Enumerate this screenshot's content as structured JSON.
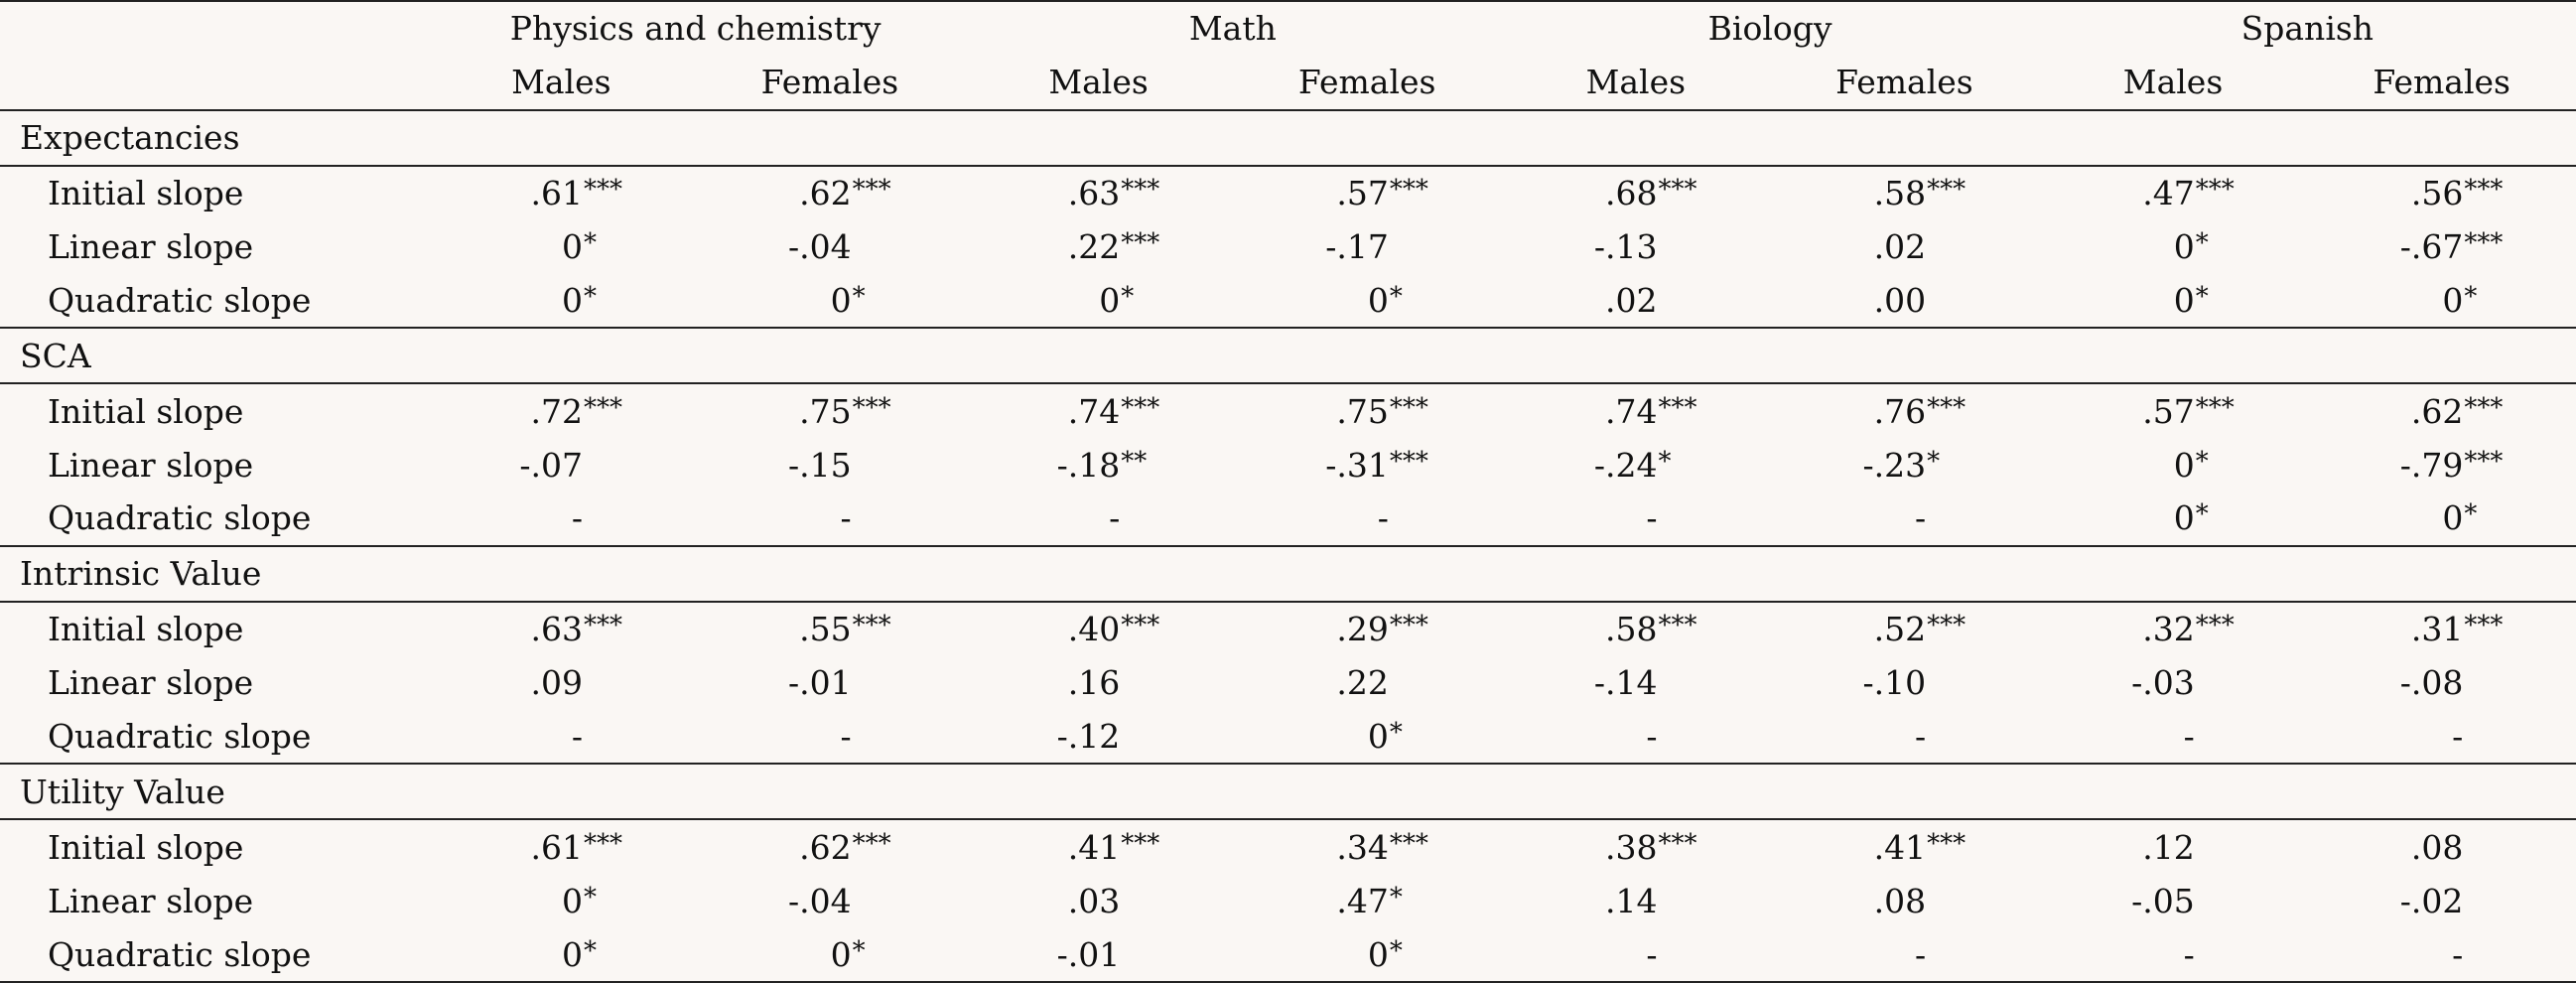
{
  "subjects": [
    "Physics and chemistry",
    "Math",
    "Biology",
    "Spanish"
  ],
  "sexes": [
    "Males",
    "Females"
  ],
  "groups": [
    {
      "label": "Expectancies",
      "rows": [
        {
          "label": "Initial slope",
          "cells": [
            {
              "v": ".61",
              "s": "***"
            },
            {
              "v": ".62",
              "s": "***"
            },
            {
              "v": ".63",
              "s": "***"
            },
            {
              "v": ".57",
              "s": "***"
            },
            {
              "v": ".68",
              "s": "***"
            },
            {
              "v": ".58",
              "s": "***"
            },
            {
              "v": ".47",
              "s": "***"
            },
            {
              "v": ".56",
              "s": "***"
            }
          ]
        },
        {
          "label": "Linear slope",
          "cells": [
            {
              "v": "0",
              "s": "*"
            },
            {
              "v": "-.04",
              "s": ""
            },
            {
              "v": ".22",
              "s": "***"
            },
            {
              "v": "-.17",
              "s": ""
            },
            {
              "v": "-.13",
              "s": ""
            },
            {
              "v": ".02",
              "s": ""
            },
            {
              "v": "0",
              "s": "*"
            },
            {
              "v": "-.67",
              "s": "***"
            }
          ]
        },
        {
          "label": "Quadratic slope",
          "cells": [
            {
              "v": "0",
              "s": "*"
            },
            {
              "v": "0",
              "s": "*"
            },
            {
              "v": "0",
              "s": "*"
            },
            {
              "v": "0",
              "s": "*"
            },
            {
              "v": ".02",
              "s": ""
            },
            {
              "v": ".00",
              "s": ""
            },
            {
              "v": "0",
              "s": "*"
            },
            {
              "v": "0",
              "s": "*"
            }
          ]
        }
      ]
    },
    {
      "label": "SCA",
      "rows": [
        {
          "label": "Initial slope",
          "cells": [
            {
              "v": ".72",
              "s": "***"
            },
            {
              "v": ".75",
              "s": "***"
            },
            {
              "v": ".74",
              "s": "***"
            },
            {
              "v": ".75",
              "s": "***"
            },
            {
              "v": ".74",
              "s": "***"
            },
            {
              "v": ".76",
              "s": "***"
            },
            {
              "v": ".57",
              "s": "***"
            },
            {
              "v": ".62",
              "s": "***"
            }
          ]
        },
        {
          "label": "Linear slope",
          "cells": [
            {
              "v": "-.07",
              "s": ""
            },
            {
              "v": "-.15",
              "s": ""
            },
            {
              "v": "-.18",
              "s": "**"
            },
            {
              "v": "-.31",
              "s": "***"
            },
            {
              "v": "-.24",
              "s": "*"
            },
            {
              "v": "-.23",
              "s": "*"
            },
            {
              "v": "0",
              "s": "*"
            },
            {
              "v": "-.79",
              "s": "***"
            }
          ]
        },
        {
          "label": "Quadratic slope",
          "cells": [
            {
              "v": "-",
              "s": ""
            },
            {
              "v": "-",
              "s": ""
            },
            {
              "v": "-",
              "s": ""
            },
            {
              "v": "-",
              "s": ""
            },
            {
              "v": "-",
              "s": ""
            },
            {
              "v": "-",
              "s": ""
            },
            {
              "v": "0",
              "s": "*"
            },
            {
              "v": "0",
              "s": "*"
            }
          ]
        }
      ]
    },
    {
      "label": "Intrinsic Value",
      "rows": [
        {
          "label": "Initial slope",
          "cells": [
            {
              "v": ".63",
              "s": "***"
            },
            {
              "v": ".55",
              "s": "***"
            },
            {
              "v": ".40",
              "s": "***"
            },
            {
              "v": ".29",
              "s": "***"
            },
            {
              "v": ".58",
              "s": "***"
            },
            {
              "v": ".52",
              "s": "***"
            },
            {
              "v": ".32",
              "s": "***"
            },
            {
              "v": ".31",
              "s": "***"
            }
          ]
        },
        {
          "label": "Linear slope",
          "cells": [
            {
              "v": ".09",
              "s": ""
            },
            {
              "v": "-.01",
              "s": ""
            },
            {
              "v": ".16",
              "s": ""
            },
            {
              "v": ".22",
              "s": ""
            },
            {
              "v": "-.14",
              "s": ""
            },
            {
              "v": "-.10",
              "s": ""
            },
            {
              "v": "-.03",
              "s": ""
            },
            {
              "v": "-.08",
              "s": ""
            }
          ]
        },
        {
          "label": "Quadratic slope",
          "cells": [
            {
              "v": "-",
              "s": ""
            },
            {
              "v": "-",
              "s": ""
            },
            {
              "v": "-.12",
              "s": ""
            },
            {
              "v": "0",
              "s": "*"
            },
            {
              "v": "-",
              "s": ""
            },
            {
              "v": "-",
              "s": ""
            },
            {
              "v": "-",
              "s": ""
            },
            {
              "v": "-",
              "s": ""
            }
          ]
        }
      ]
    },
    {
      "label": "Utility Value",
      "rows": [
        {
          "label": "Initial slope",
          "cells": [
            {
              "v": ".61",
              "s": "***"
            },
            {
              "v": ".62",
              "s": "***"
            },
            {
              "v": ".41",
              "s": "***"
            },
            {
              "v": ".34",
              "s": "***"
            },
            {
              "v": ".38",
              "s": "***"
            },
            {
              "v": ".41",
              "s": "***"
            },
            {
              "v": ".12",
              "s": ""
            },
            {
              "v": ".08",
              "s": ""
            }
          ]
        },
        {
          "label": "Linear slope",
          "cells": [
            {
              "v": "0",
              "s": "*"
            },
            {
              "v": "-.04",
              "s": ""
            },
            {
              "v": ".03",
              "s": ""
            },
            {
              "v": ".47",
              "s": "*"
            },
            {
              "v": ".14",
              "s": ""
            },
            {
              "v": ".08",
              "s": ""
            },
            {
              "v": "-.05",
              "s": ""
            },
            {
              "v": "-.02",
              "s": ""
            }
          ]
        },
        {
          "label": "Quadratic slope",
          "cells": [
            {
              "v": "0",
              "s": "*"
            },
            {
              "v": "0",
              "s": "*"
            },
            {
              "v": "-.01",
              "s": ""
            },
            {
              "v": "0",
              "s": "*"
            },
            {
              "v": "-",
              "s": ""
            },
            {
              "v": "-",
              "s": ""
            },
            {
              "v": "-",
              "s": ""
            },
            {
              "v": "-",
              "s": ""
            }
          ]
        }
      ]
    }
  ]
}
